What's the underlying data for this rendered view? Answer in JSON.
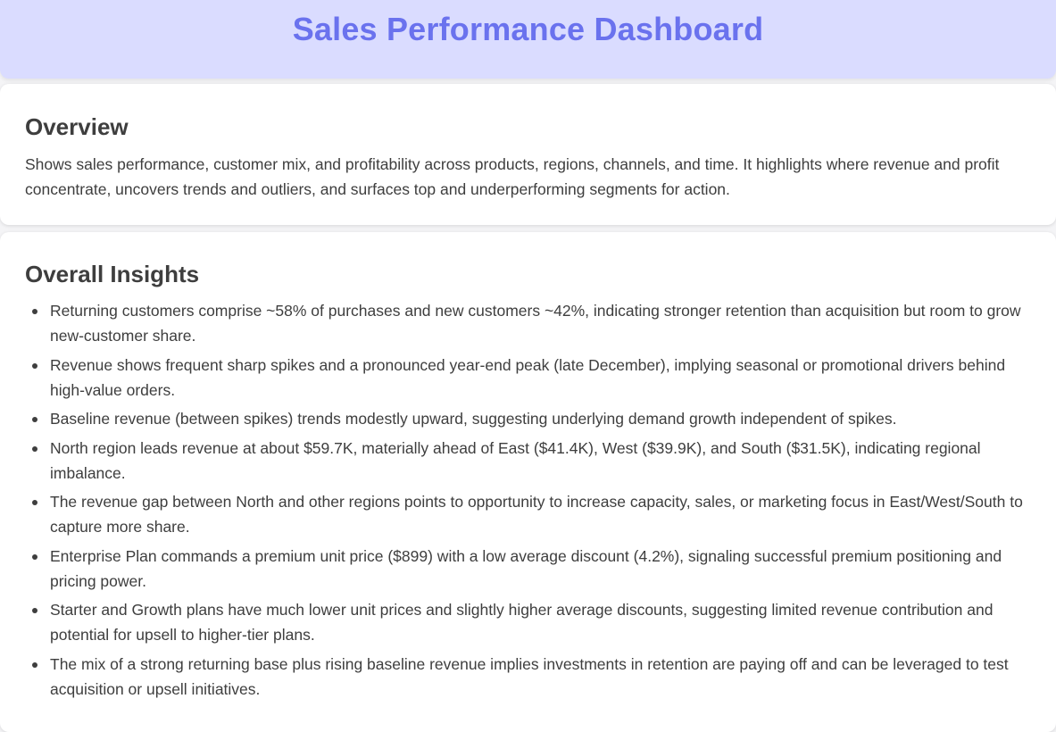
{
  "header": {
    "title": "Sales Performance Dashboard"
  },
  "overview": {
    "heading": "Overview",
    "text": "Shows sales performance, customer mix, and profitability across products, regions, channels, and time. It highlights where revenue and profit concentrate, uncovers trends and outliers, and surfaces top and underperforming segments for action."
  },
  "insights": {
    "heading": "Overall Insights",
    "items": [
      "Returning customers comprise ~58% of purchases and new customers ~42%, indicating stronger retention than acquisition but room to grow new-customer share.",
      "Revenue shows frequent sharp spikes and a pronounced year-end peak (late December), implying seasonal or promotional drivers behind high-value orders.",
      "Baseline revenue (between spikes) trends modestly upward, suggesting underlying demand growth independent of spikes.",
      "North region leads revenue at about $59.7K, materially ahead of East ($41.4K), West ($39.9K), and South ($31.5K), indicating regional imbalance.",
      "The revenue gap between North and other regions points to opportunity to increase capacity, sales, or marketing focus in East/West/South to capture more share.",
      "Enterprise Plan commands a premium unit price ($899) with a low average discount (4.2%), signaling successful premium positioning and pricing power.",
      "Starter and Growth plans have much lower unit prices and slightly higher average discounts, suggesting limited revenue contribution and potential for upsell to higher-tier plans.",
      "The mix of a strong returning base plus rising baseline revenue implies investments in retention are paying off and can be leveraged to test acquisition or upsell initiatives."
    ]
  },
  "colors": {
    "header_bg": "#dadcff",
    "title_color": "#6a72ee",
    "text_color": "#3e3e3e",
    "card_bg": "#ffffff",
    "page_bg": "#f4f4f6"
  }
}
